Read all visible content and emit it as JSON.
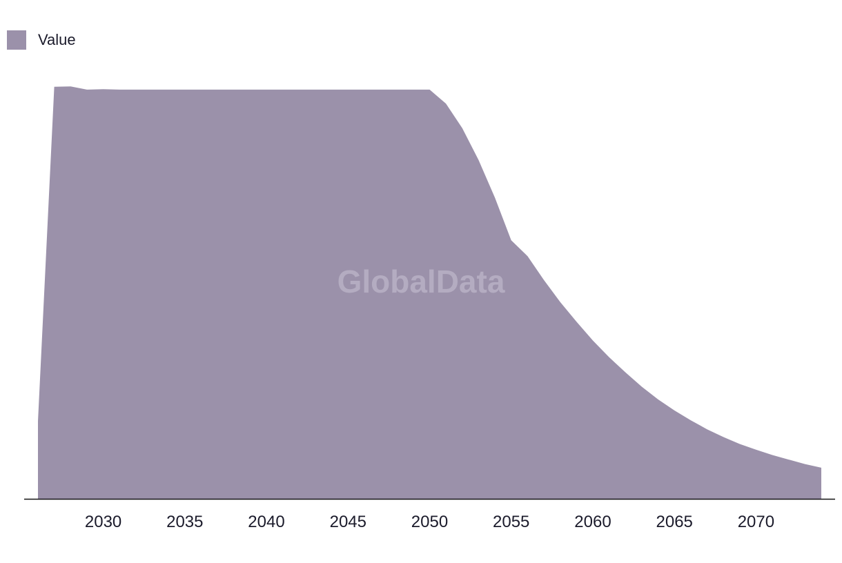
{
  "chart_data": {
    "type": "area",
    "series": [
      {
        "name": "Value",
        "x": [
          2026,
          2027,
          2028,
          2029,
          2030,
          2031,
          2032,
          2033,
          2034,
          2035,
          2036,
          2037,
          2038,
          2039,
          2040,
          2041,
          2042,
          2043,
          2044,
          2045,
          2046,
          2047,
          2048,
          2049,
          2050,
          2051,
          2052,
          2053,
          2054,
          2055,
          2056,
          2057,
          2058,
          2059,
          2060,
          2061,
          2062,
          2063,
          2064,
          2065,
          2066,
          2067,
          2068,
          2069,
          2070,
          2071,
          2072,
          2073,
          2074
        ],
        "values": [
          19,
          100.7,
          100.8,
          100.0,
          100.1,
          100.0,
          100.0,
          100.0,
          100.0,
          100.0,
          100.0,
          100.0,
          100.0,
          100.0,
          100.0,
          100.0,
          100.0,
          100.0,
          100.0,
          100.0,
          100.0,
          100.0,
          100.0,
          100.0,
          100.0,
          96.6,
          90.6,
          82.8,
          73.6,
          63.2,
          59.3,
          53.5,
          48.1,
          43.3,
          38.7,
          34.6,
          30.9,
          27.4,
          24.3,
          21.6,
          19.2,
          17.0,
          15.1,
          13.4,
          12.0,
          10.7,
          9.6,
          8.5,
          7.6
        ]
      }
    ],
    "xticks": [
      "2030",
      "2035",
      "2040",
      "2045",
      "2050",
      "2055",
      "2060",
      "2065",
      "2070"
    ],
    "xlim": [
      2026,
      2074
    ],
    "ylim": [
      0,
      101
    ],
    "grid": false,
    "legend_position": "top-left",
    "watermark": "GlobalData",
    "colors": {
      "area": "#9b91aa",
      "axis": "#111111",
      "watermark": "#b4acc1"
    }
  }
}
